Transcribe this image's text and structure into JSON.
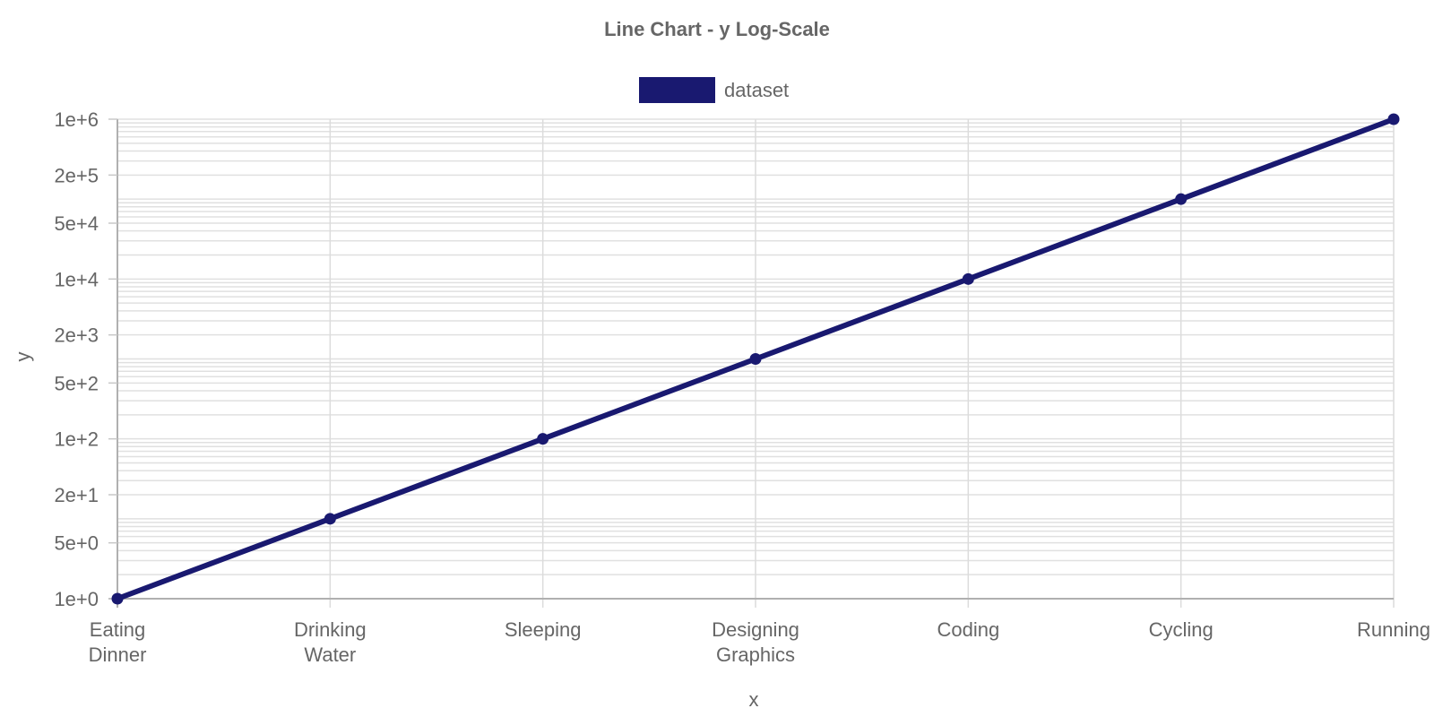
{
  "chart_data": {
    "type": "line",
    "title": "Line Chart - y Log-Scale",
    "xlabel": "x",
    "ylabel": "y",
    "y_scale": "log",
    "ylim": [
      1,
      1000000
    ],
    "grid": true,
    "legend_position": "top-center",
    "categories": [
      [
        "Eating",
        "Dinner"
      ],
      [
        "Drinking",
        "Water"
      ],
      [
        "Sleeping"
      ],
      [
        "Designing",
        "Graphics"
      ],
      [
        "Coding"
      ],
      [
        "Cycling"
      ],
      [
        "Running"
      ]
    ],
    "y_ticks": [
      {
        "value": 1,
        "label": "1e+0"
      },
      {
        "value": 5,
        "label": "5e+0"
      },
      {
        "value": 20,
        "label": "2e+1"
      },
      {
        "value": 100,
        "label": "1e+2"
      },
      {
        "value": 500,
        "label": "5e+2"
      },
      {
        "value": 2000,
        "label": "2e+3"
      },
      {
        "value": 10000,
        "label": "1e+4"
      },
      {
        "value": 50000,
        "label": "5e+4"
      },
      {
        "value": 200000,
        "label": "2e+5"
      },
      {
        "value": 1000000,
        "label": "1e+6"
      }
    ],
    "series": [
      {
        "name": "dataset",
        "color": "#191970",
        "values": [
          1,
          10,
          100,
          1000,
          10000,
          100000,
          1000000
        ]
      }
    ]
  }
}
